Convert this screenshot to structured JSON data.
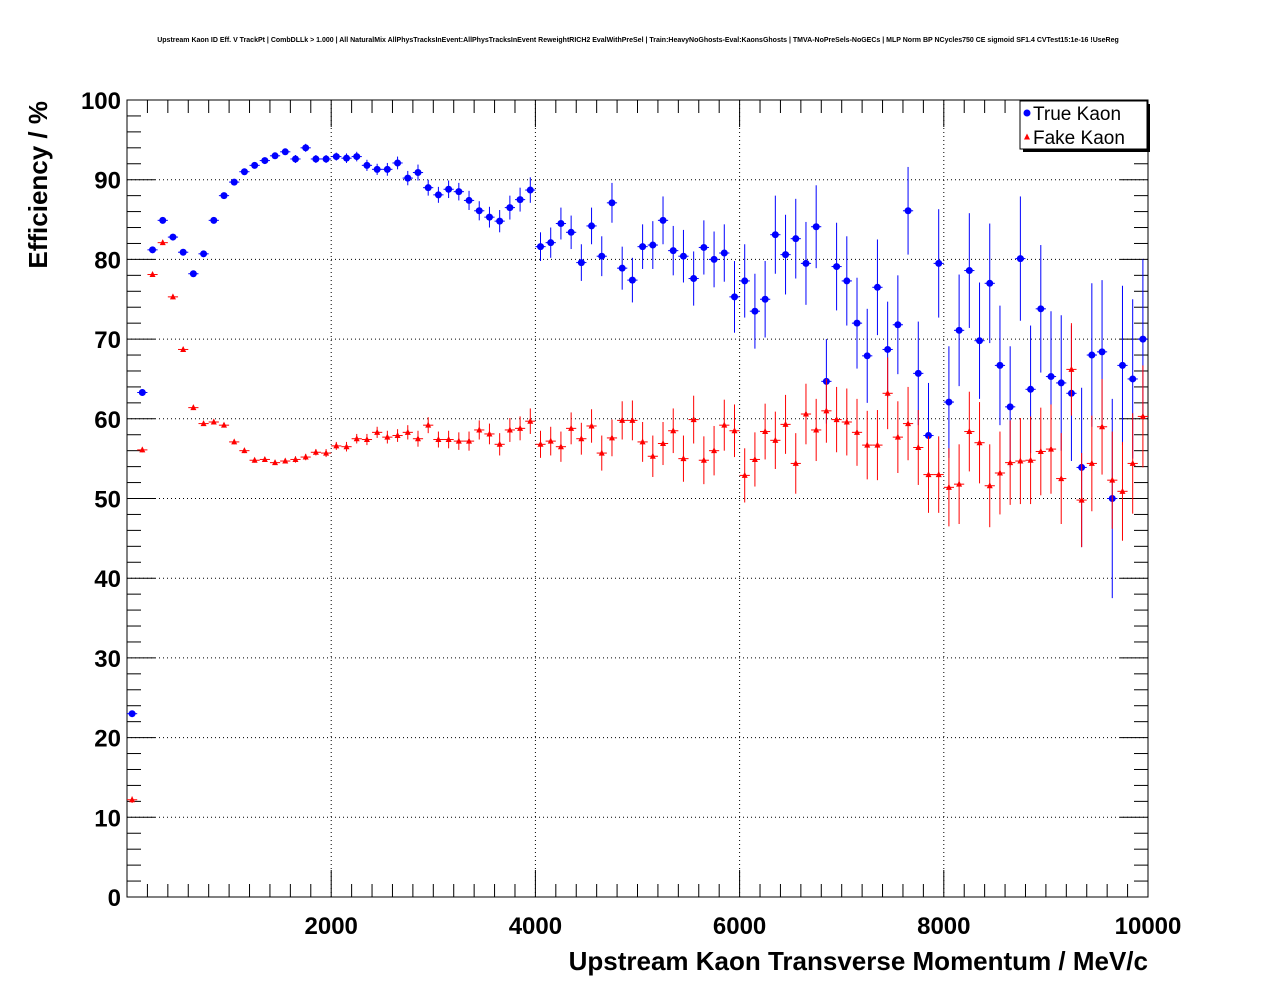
{
  "chart_data": {
    "type": "scatter",
    "title": "Upstream Kaon ID Eff. V TrackPt | CombDLLk > 1.000 | All NaturalMix AllPhysTracksInEvent:AllPhysTracksInEvent ReweightRICH2 EvalWithPreSel | Train:HeavyNoGhosts-Eval:KaonsGhosts | TMVA-NoPreSels-NoGECs | MLP Norm BP NCycles750 CE sigmoid SF1.4 CVTest15:1e-16 !UseReg",
    "xlabel": "Upstream Kaon Transverse Momentum / MeV/c",
    "ylabel": "Efficiency / %",
    "xlim": [
      0,
      10000
    ],
    "ylim": [
      0,
      100
    ],
    "xticks": [
      2000,
      4000,
      6000,
      8000,
      10000
    ],
    "yticks": [
      0,
      10,
      20,
      30,
      40,
      50,
      60,
      70,
      80,
      90,
      100
    ],
    "grid": true,
    "legend_position": "top-right",
    "series": [
      {
        "name": "True Kaon",
        "color": "#0000ff",
        "marker": "circle",
        "x": [
          50,
          150,
          250,
          350,
          450,
          550,
          650,
          750,
          850,
          950,
          1050,
          1150,
          1250,
          1350,
          1450,
          1550,
          1650,
          1750,
          1850,
          1950,
          2050,
          2150,
          2250,
          2350,
          2450,
          2550,
          2650,
          2750,
          2850,
          2950,
          3050,
          3150,
          3250,
          3350,
          3450,
          3550,
          3650,
          3750,
          3850,
          3950,
          4050,
          4150,
          4250,
          4350,
          4450,
          4550,
          4650,
          4750,
          4850,
          4950,
          5050,
          5150,
          5250,
          5350,
          5450,
          5550,
          5650,
          5750,
          5850,
          5950,
          6050,
          6150,
          6250,
          6350,
          6450,
          6550,
          6650,
          6750,
          6850,
          6950,
          7050,
          7150,
          7250,
          7350,
          7450,
          7550,
          7650,
          7750,
          7850,
          7950,
          8050,
          8150,
          8250,
          8350,
          8450,
          8550,
          8650,
          8750,
          8850,
          8950,
          9050,
          9150,
          9250,
          9350,
          9450,
          9550,
          9650,
          9750,
          9850,
          9950
        ],
        "y": [
          23.0,
          63.3,
          81.2,
          84.9,
          82.8,
          80.9,
          78.2,
          80.7,
          84.9,
          88.0,
          89.7,
          91.0,
          91.8,
          92.4,
          93.0,
          93.5,
          92.6,
          94.0,
          92.6,
          92.6,
          92.9,
          92.7,
          92.9,
          91.8,
          91.3,
          91.3,
          92.1,
          90.2,
          90.9,
          89.0,
          88.1,
          88.8,
          88.5,
          87.4,
          86.1,
          85.3,
          84.8,
          86.5,
          87.5,
          88.7,
          81.6,
          82.1,
          84.5,
          83.4,
          79.6,
          84.2,
          80.4,
          87.1,
          78.9,
          77.4,
          81.6,
          81.8,
          84.9,
          81.1,
          80.4,
          77.6,
          81.5,
          80.0,
          80.8,
          75.3,
          77.3,
          73.5,
          75.0,
          83.1,
          80.6,
          82.6,
          79.5,
          84.1,
          64.7,
          79.1,
          77.3,
          72.0,
          67.9,
          76.5,
          68.7,
          71.8,
          86.1,
          65.7,
          57.9,
          79.5,
          62.1,
          71.1,
          78.6,
          69.8,
          77.0,
          66.7,
          61.5,
          80.1,
          63.7,
          73.8,
          65.3,
          64.5,
          63.2,
          53.9,
          68.0,
          68.4,
          50.0,
          66.7,
          65.0,
          70.0
        ],
        "err": [
          0.4,
          0.4,
          0.4,
          0.4,
          0.4,
          0.4,
          0.4,
          0.4,
          0.4,
          0.3,
          0.3,
          0.3,
          0.4,
          0.4,
          0.4,
          0.4,
          0.5,
          0.5,
          0.5,
          0.5,
          0.5,
          0.6,
          0.6,
          0.7,
          0.7,
          0.8,
          0.8,
          0.9,
          1.0,
          1.0,
          1.0,
          1.1,
          1.1,
          1.2,
          1.2,
          1.3,
          1.4,
          1.5,
          1.5,
          1.6,
          1.8,
          1.9,
          2.0,
          2.1,
          2.3,
          2.3,
          2.5,
          2.5,
          2.7,
          2.8,
          2.8,
          3.0,
          3.0,
          3.1,
          3.3,
          3.4,
          3.4,
          3.5,
          3.6,
          4.5,
          4.6,
          4.7,
          4.8,
          4.9,
          5.0,
          5.0,
          5.2,
          5.2,
          5.3,
          5.5,
          5.6,
          5.7,
          5.9,
          6.0,
          6.0,
          6.2,
          5.5,
          6.5,
          6.6,
          6.8,
          7.0,
          7.0,
          7.2,
          7.3,
          7.5,
          7.5,
          7.6,
          7.8,
          8.0,
          8.0,
          8.2,
          8.5,
          8.5,
          10.0,
          9.0,
          9.0,
          12.5,
          10.0,
          10.0,
          10.0
        ]
      },
      {
        "name": "Fake Kaon",
        "color": "#ff0000",
        "marker": "triangle",
        "x": [
          50,
          150,
          250,
          350,
          450,
          550,
          650,
          750,
          850,
          950,
          1050,
          1150,
          1250,
          1350,
          1450,
          1550,
          1650,
          1750,
          1850,
          1950,
          2050,
          2150,
          2250,
          2350,
          2450,
          2550,
          2650,
          2750,
          2850,
          2950,
          3050,
          3150,
          3250,
          3350,
          3450,
          3550,
          3650,
          3750,
          3850,
          3950,
          4050,
          4150,
          4250,
          4350,
          4450,
          4550,
          4650,
          4750,
          4850,
          4950,
          5050,
          5150,
          5250,
          5350,
          5450,
          5550,
          5650,
          5750,
          5850,
          5950,
          6050,
          6150,
          6250,
          6350,
          6450,
          6550,
          6650,
          6750,
          6850,
          6950,
          7050,
          7150,
          7250,
          7350,
          7450,
          7550,
          7650,
          7750,
          7850,
          7950,
          8050,
          8150,
          8250,
          8350,
          8450,
          8550,
          8650,
          8750,
          8850,
          8950,
          9050,
          9150,
          9250,
          9350,
          9450,
          9550,
          9650,
          9750,
          9850,
          9950
        ],
        "y": [
          12.2,
          56.1,
          78.1,
          82.1,
          75.3,
          68.7,
          61.4,
          59.4,
          59.6,
          59.2,
          57.1,
          56.0,
          54.8,
          54.9,
          54.5,
          54.7,
          54.9,
          55.2,
          55.8,
          55.7,
          56.6,
          56.5,
          57.5,
          57.4,
          58.3,
          57.7,
          57.9,
          58.3,
          57.5,
          59.2,
          57.4,
          57.4,
          57.2,
          57.2,
          58.6,
          58.1,
          56.8,
          58.6,
          58.8,
          59.7,
          56.8,
          57.2,
          56.5,
          58.8,
          57.5,
          59.1,
          55.7,
          57.6,
          59.8,
          59.8,
          57.1,
          55.3,
          56.9,
          58.5,
          55.0,
          59.9,
          54.8,
          56.0,
          59.2,
          58.5,
          52.9,
          54.9,
          58.4,
          57.3,
          59.3,
          54.4,
          60.6,
          58.6,
          61.0,
          59.9,
          59.6,
          58.3,
          56.7,
          56.7,
          63.2,
          57.7,
          59.4,
          56.4,
          53.0,
          53.0,
          51.4,
          51.8,
          58.4,
          57.0,
          51.6,
          53.2,
          54.5,
          54.7,
          54.8,
          55.9,
          56.2,
          52.5,
          66.2,
          49.8,
          54.4,
          59.0,
          52.3,
          50.9,
          54.4,
          60.3
        ],
        "err": [
          0.4,
          0.3,
          0.3,
          0.3,
          0.3,
          0.3,
          0.3,
          0.3,
          0.3,
          0.3,
          0.3,
          0.3,
          0.3,
          0.3,
          0.3,
          0.3,
          0.4,
          0.4,
          0.4,
          0.5,
          0.5,
          0.6,
          0.6,
          0.7,
          0.7,
          0.8,
          0.8,
          0.9,
          1.0,
          1.0,
          1.0,
          1.1,
          1.1,
          1.2,
          1.2,
          1.3,
          1.4,
          1.5,
          1.5,
          1.6,
          1.7,
          1.8,
          1.9,
          2.0,
          2.0,
          2.1,
          2.2,
          2.3,
          2.4,
          2.5,
          2.5,
          2.6,
          2.7,
          2.8,
          2.9,
          3.0,
          3.0,
          3.1,
          3.2,
          3.3,
          3.4,
          3.4,
          3.5,
          3.6,
          3.7,
          3.8,
          3.8,
          3.9,
          4.0,
          4.1,
          4.2,
          4.2,
          4.3,
          4.4,
          4.5,
          4.5,
          4.6,
          4.7,
          4.8,
          4.8,
          4.9,
          5.0,
          5.0,
          5.1,
          5.2,
          5.2,
          5.3,
          5.4,
          5.5,
          5.5,
          5.6,
          5.7,
          5.8,
          5.9,
          6.0,
          6.0,
          6.1,
          6.2,
          6.3,
          6.4
        ]
      }
    ]
  }
}
